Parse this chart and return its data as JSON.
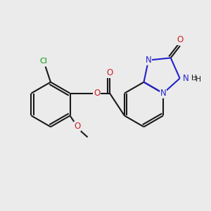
{
  "background_color": "#ebebeb",
  "bond_color": "#1a1a1a",
  "blue_color": "#2222cc",
  "red_color": "#cc2222",
  "green_color": "#009900",
  "black_color": "#1a1a1a",
  "lw": 1.5,
  "fig_width": 3.0,
  "fig_height": 3.0,
  "dpi": 100,
  "xlim": [
    0,
    10
  ],
  "ylim": [
    0,
    10
  ]
}
